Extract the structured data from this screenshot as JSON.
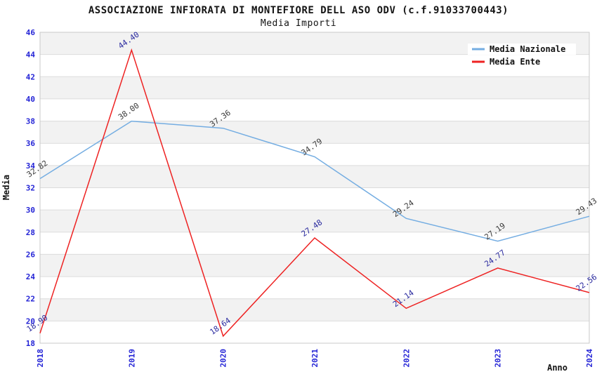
{
  "chart_data": {
    "type": "line",
    "title": "ASSOCIAZIONE INFIORATA DI MONTEFIORE DELL ASO ODV (c.f.91033700443)",
    "subtitle": "Media Importi",
    "xlabel": "Anno",
    "ylabel": "Media",
    "categories": [
      "2018",
      "2019",
      "2020",
      "2021",
      "2022",
      "2023",
      "2024"
    ],
    "series": [
      {
        "name": "Media Nazionale",
        "values": [
          32.82,
          38.0,
          37.36,
          34.79,
          29.24,
          27.19,
          29.43
        ],
        "color": "#74ade2",
        "label_color": "#3a3a3a"
      },
      {
        "name": "Media Ente",
        "values": [
          18.9,
          44.4,
          18.64,
          27.48,
          21.14,
          24.77,
          22.56
        ],
        "color": "#ee2222",
        "label_color": "#28289e"
      }
    ],
    "ylim": [
      18,
      46
    ],
    "ytick_step": 2,
    "grid": "horizontal-bands",
    "legend_position": "top-right",
    "colors": {
      "band_fill": "#f2f2f2",
      "gridline": "#dcdcdc",
      "plot_border": "#c9c9c9",
      "tick_label": "#2424d6",
      "title_text": "#141414",
      "legend_text": "#111111",
      "legend_bg": "#ffffff"
    }
  }
}
